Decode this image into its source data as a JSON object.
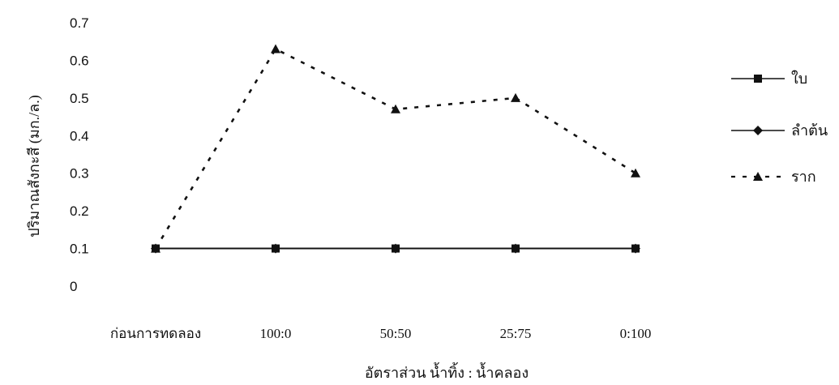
{
  "chart_data": {
    "type": "line",
    "title": "",
    "xlabel": "อัตราส่วน น้ำทิ้ง : น้ำคลอง",
    "ylabel": "ปริมาณสังกะสี (มก./ล.)",
    "categories": [
      "ก่อนการทดลอง",
      "100:0",
      "50:50",
      "25:75",
      "0:100"
    ],
    "ylim": [
      0,
      0.7
    ],
    "yticks": [
      "0",
      "0.1",
      "0.2",
      "0.3",
      "0.4",
      "0.5",
      "0.6",
      "0.7"
    ],
    "grid": false,
    "legend_position": "right",
    "series": [
      {
        "name": "ใบ",
        "values": [
          0.1,
          0.1,
          0.1,
          0.1,
          0.1
        ],
        "marker": "square",
        "line_style": "solid",
        "color": "#111111"
      },
      {
        "name": "ลำต้น",
        "values": [
          0.1,
          0.1,
          0.1,
          0.1,
          0.1
        ],
        "marker": "diamond",
        "line_style": "solid",
        "color": "#111111"
      },
      {
        "name": "ราก",
        "values": [
          0.1,
          0.63,
          0.47,
          0.5,
          0.3
        ],
        "marker": "triangle",
        "line_style": "dashed",
        "color": "#111111"
      }
    ]
  }
}
